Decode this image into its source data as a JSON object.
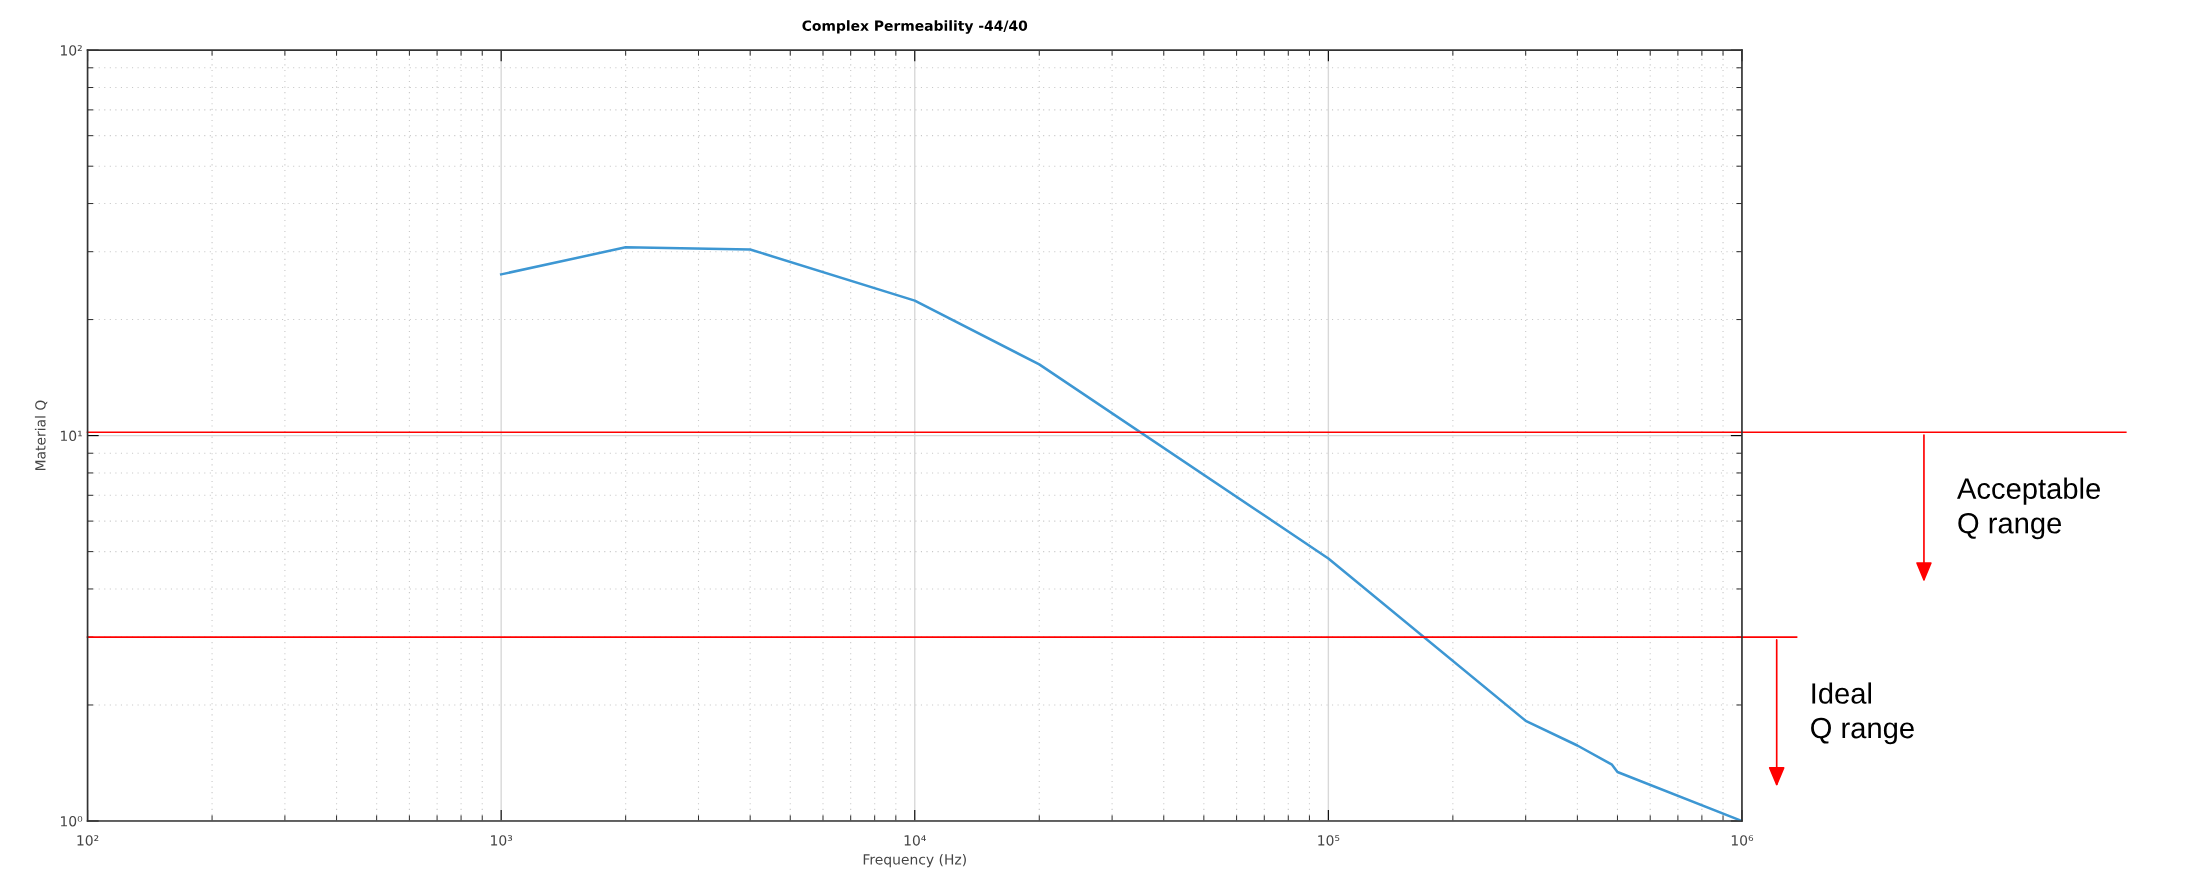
{
  "chart_data": {
    "type": "line",
    "title": "Complex Permeability -44/40",
    "xlabel": "Frequency (Hz)",
    "ylabel": "Material Q",
    "x": [
      1000,
      2000,
      4000,
      10000,
      20000,
      100000,
      300000,
      400000,
      485000,
      500000,
      1000000
    ],
    "series": [
      {
        "color": "#3d97d3",
        "values": [
          26.2,
          30.8,
          30.4,
          22.4,
          15.3,
          4.8,
          1.82,
          1.57,
          1.4,
          1.34,
          1.0
        ]
      }
    ],
    "log": "xy",
    "grid": true,
    "marker": "none",
    "line_style": "solid",
    "xlim": [
      100,
      1000000
    ],
    "ylim": [
      1,
      100
    ],
    "xticks": [
      {
        "value": 100,
        "label": "10²"
      },
      {
        "value": 1000,
        "label": "10³"
      },
      {
        "value": 10000,
        "label": "10⁴"
      },
      {
        "value": 100000,
        "label": "10⁵"
      },
      {
        "value": 1000000,
        "label": "10⁶"
      }
    ],
    "yticks": [
      {
        "value": 1,
        "label": "10⁰"
      },
      {
        "value": 10,
        "label": "10¹"
      },
      {
        "value": 100,
        "label": "10²"
      }
    ],
    "ref_lines": [
      {
        "axis": "y",
        "value": 10.2,
        "label": "Acceptable\nQ range",
        "color": "#ff0000"
      },
      {
        "axis": "y",
        "value": 3.0,
        "label": "Ideal\nQ range",
        "color": "#ff0000"
      }
    ]
  }
}
